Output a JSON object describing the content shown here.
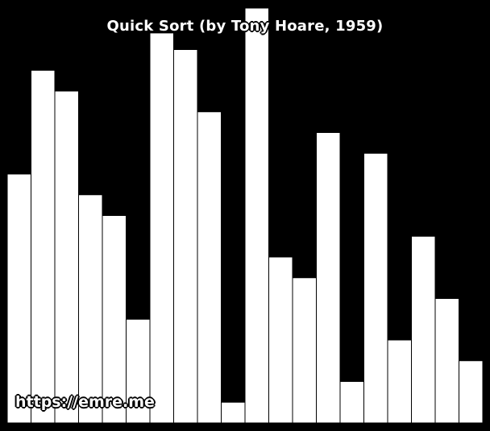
{
  "title": "Quick Sort (by Tony Hoare, 1959)",
  "watermark": "https://emre.me",
  "colors": {
    "background": "#000000",
    "bar_fill": "#ffffff",
    "bar_stroke": "#000000"
  },
  "chart_data": {
    "type": "bar",
    "title": "Quick Sort (by Tony Hoare, 1959)",
    "xlabel": "",
    "ylabel": "",
    "grid": false,
    "ylim": [
      0,
      100
    ],
    "values": [
      60,
      85,
      80,
      55,
      50,
      25,
      94,
      90,
      75,
      5,
      100,
      40,
      35,
      70,
      10,
      65,
      20,
      45,
      30,
      15
    ]
  }
}
